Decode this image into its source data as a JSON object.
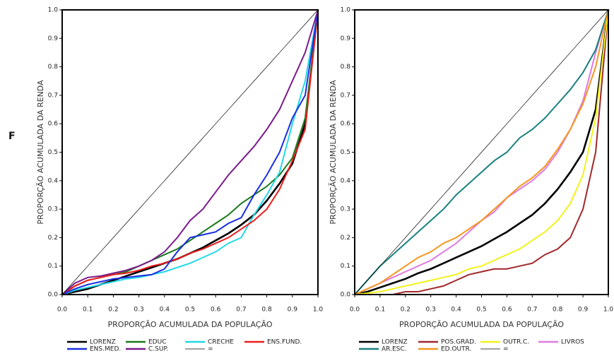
{
  "panel_label": "F",
  "chart_data": [
    {
      "type": "line",
      "xlabel": "PROPORÇÃO ACUMULADA DA POPULAÇÃO",
      "ylabel": "PROPORÇÃO ACUMULADA DA RENDA",
      "x": [
        0,
        0.05,
        0.1,
        0.15,
        0.2,
        0.25,
        0.3,
        0.35,
        0.4,
        0.45,
        0.5,
        0.55,
        0.6,
        0.65,
        0.7,
        0.75,
        0.8,
        0.85,
        0.9,
        0.95,
        1.0
      ],
      "xlim": [
        0,
        1
      ],
      "ylim": [
        0,
        1
      ],
      "xticks": [
        {
          "value": 0,
          "label": "0.0"
        },
        0.1,
        0.2,
        0.3,
        0.4,
        0.5,
        0.6,
        0.7,
        0.8,
        0.9,
        {
          "value": 1,
          "label": "1.0"
        }
      ],
      "yticks": [
        {
          "value": 0,
          "label": "0.0"
        },
        0.1,
        0.2,
        0.3,
        0.4,
        0.5,
        0.6,
        0.7,
        0.8,
        0.9,
        {
          "value": 1,
          "label": "1.0"
        }
      ],
      "series": [
        {
          "name": "LORENZ",
          "color": "#000000",
          "values": [
            0,
            0.01,
            0.02,
            0.035,
            0.05,
            0.065,
            0.08,
            0.095,
            0.11,
            0.125,
            0.145,
            0.165,
            0.19,
            0.215,
            0.245,
            0.28,
            0.33,
            0.39,
            0.46,
            0.6,
            1.0
          ]
        },
        {
          "name": "EDUC",
          "color": "#1a7a1a",
          "values": [
            0,
            0.03,
            0.05,
            0.06,
            0.07,
            0.08,
            0.1,
            0.12,
            0.14,
            0.16,
            0.19,
            0.22,
            0.25,
            0.28,
            0.32,
            0.35,
            0.38,
            0.42,
            0.48,
            0.62,
            1.0
          ]
        },
        {
          "name": "CRECHE",
          "color": "#22d8e8",
          "values": [
            0,
            0.015,
            0.025,
            0.035,
            0.045,
            0.055,
            0.06,
            0.07,
            0.08,
            0.095,
            0.11,
            0.13,
            0.15,
            0.18,
            0.2,
            0.28,
            0.35,
            0.43,
            0.6,
            0.75,
            1.0
          ]
        },
        {
          "name": "ENS.FUND.",
          "color": "#ee1c1c",
          "values": [
            0,
            0.03,
            0.05,
            0.06,
            0.07,
            0.075,
            0.085,
            0.1,
            0.11,
            0.125,
            0.145,
            0.16,
            0.18,
            0.2,
            0.23,
            0.26,
            0.3,
            0.37,
            0.47,
            0.58,
            1.0
          ]
        },
        {
          "name": "ENS.MED.",
          "color": "#1a2ee0",
          "values": [
            0,
            0.02,
            0.035,
            0.045,
            0.055,
            0.06,
            0.065,
            0.07,
            0.09,
            0.15,
            0.2,
            0.21,
            0.22,
            0.25,
            0.27,
            0.35,
            0.42,
            0.5,
            0.62,
            0.7,
            1.0
          ]
        },
        {
          "name": "C.SUP.",
          "color": "#7a1a8c",
          "values": [
            0,
            0.04,
            0.06,
            0.065,
            0.075,
            0.085,
            0.1,
            0.12,
            0.15,
            0.2,
            0.26,
            0.3,
            0.36,
            0.42,
            0.47,
            0.52,
            0.58,
            0.65,
            0.75,
            0.85,
            1.0
          ]
        },
        {
          "name": "=",
          "color": "#000000",
          "values": [
            0,
            0.05,
            0.1,
            0.15,
            0.2,
            0.25,
            0.3,
            0.35,
            0.4,
            0.45,
            0.5,
            0.55,
            0.6,
            0.65,
            0.7,
            0.75,
            0.8,
            0.85,
            0.9,
            0.95,
            1.0
          ]
        }
      ]
    },
    {
      "type": "line",
      "xlabel": "PROPORÇÃO ACUMULADA DA POPULAÇÃO",
      "ylabel": "PROPORÇÃO ACUMULADA DA RENDA",
      "x": [
        0,
        0.05,
        0.1,
        0.15,
        0.2,
        0.25,
        0.3,
        0.35,
        0.4,
        0.45,
        0.5,
        0.55,
        0.6,
        0.65,
        0.7,
        0.75,
        0.8,
        0.85,
        0.9,
        0.95,
        1.0
      ],
      "xlim": [
        0,
        1
      ],
      "ylim": [
        0,
        1
      ],
      "xticks": [
        {
          "value": 0,
          "label": "0.0"
        },
        0.1,
        0.2,
        0.3,
        0.4,
        0.5,
        0.6,
        0.7,
        0.8,
        0.9,
        {
          "value": 1,
          "label": "1.0"
        }
      ],
      "yticks": [
        {
          "value": 0,
          "label": "0.0"
        },
        0.1,
        0.2,
        0.3,
        0.4,
        0.5,
        0.6,
        0.7,
        0.8,
        0.9,
        {
          "value": 1,
          "label": "1.0"
        }
      ],
      "series": [
        {
          "name": "LORENZ",
          "color": "#000000",
          "values": [
            0,
            0.01,
            0.025,
            0.04,
            0.055,
            0.075,
            0.09,
            0.11,
            0.13,
            0.15,
            0.17,
            0.195,
            0.22,
            0.25,
            0.28,
            0.32,
            0.37,
            0.43,
            0.5,
            0.65,
            1.0
          ]
        },
        {
          "name": "POS.GRAD.",
          "color": "#a0282c",
          "values": [
            0,
            0,
            0,
            0,
            0.01,
            0.01,
            0.02,
            0.03,
            0.05,
            0.07,
            0.08,
            0.09,
            0.09,
            0.1,
            0.11,
            0.14,
            0.16,
            0.2,
            0.3,
            0.5,
            1.0
          ]
        },
        {
          "name": "OUTR.C.",
          "color": "#f2f21a",
          "values": [
            0,
            0.005,
            0.01,
            0.02,
            0.03,
            0.04,
            0.05,
            0.06,
            0.07,
            0.09,
            0.1,
            0.12,
            0.14,
            0.16,
            0.19,
            0.22,
            0.26,
            0.32,
            0.42,
            0.62,
            1.0
          ]
        },
        {
          "name": "LIVROS",
          "color": "#e07ae0",
          "values": [
            0,
            0.02,
            0.04,
            0.06,
            0.08,
            0.1,
            0.12,
            0.15,
            0.18,
            0.22,
            0.26,
            0.29,
            0.34,
            0.37,
            0.4,
            0.44,
            0.5,
            0.58,
            0.68,
            0.85,
            1.0
          ]
        },
        {
          "name": "AR.ESC.",
          "color": "#1a8080",
          "values": [
            0,
            0.05,
            0.1,
            0.14,
            0.18,
            0.22,
            0.26,
            0.3,
            0.35,
            0.39,
            0.43,
            0.47,
            0.5,
            0.55,
            0.58,
            0.62,
            0.67,
            0.72,
            0.78,
            0.86,
            1.0
          ]
        },
        {
          "name": "ED.OUTR.",
          "color": "#f5961e",
          "values": [
            0,
            0.02,
            0.04,
            0.07,
            0.1,
            0.13,
            0.15,
            0.18,
            0.2,
            0.23,
            0.26,
            0.3,
            0.34,
            0.38,
            0.41,
            0.45,
            0.51,
            0.58,
            0.67,
            0.8,
            1.0
          ]
        },
        {
          "name": "=",
          "color": "#000000",
          "values": [
            0,
            0.05,
            0.1,
            0.15,
            0.2,
            0.25,
            0.3,
            0.35,
            0.4,
            0.45,
            0.5,
            0.55,
            0.6,
            0.65,
            0.7,
            0.75,
            0.8,
            0.85,
            0.9,
            0.95,
            1.0
          ]
        }
      ]
    }
  ]
}
